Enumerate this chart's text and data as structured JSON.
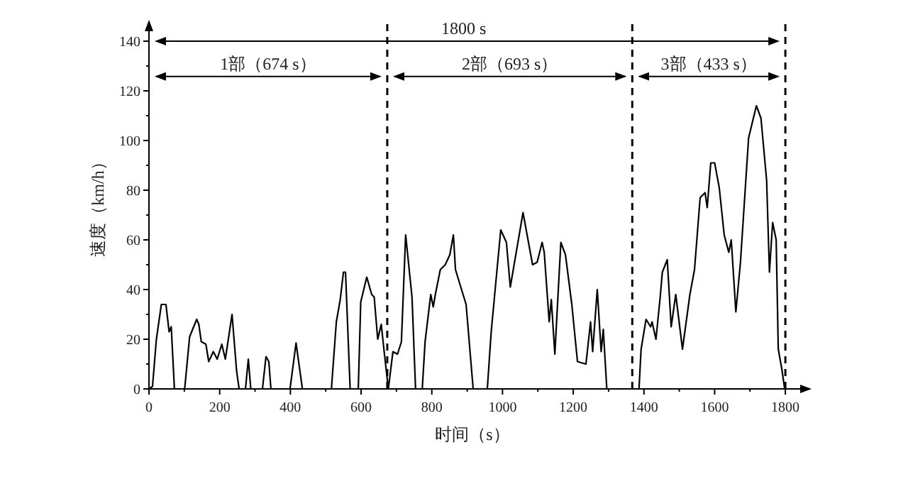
{
  "chart_data": {
    "type": "line",
    "xlabel": "时间（s）",
    "ylabel": "速度（km/h）",
    "xlim": [
      0,
      1870
    ],
    "ylim": [
      0,
      148
    ],
    "xticks": [
      0,
      {
        "value": 100,
        "label": null
      },
      200,
      {
        "value": 300,
        "label": null
      },
      400,
      {
        "value": 500,
        "label": null
      },
      600,
      {
        "value": 700,
        "label": null
      },
      800,
      {
        "value": 900,
        "label": null
      },
      1000,
      {
        "value": 1100,
        "label": null
      },
      1200,
      {
        "value": 1300,
        "label": null
      },
      1400,
      {
        "value": 1500,
        "label": null
      },
      1600,
      {
        "value": 1700,
        "label": null
      },
      1800
    ],
    "yticks": [
      0,
      {
        "value": 10,
        "label": null
      },
      20,
      {
        "value": 30,
        "label": null
      },
      40,
      {
        "value": 50,
        "label": null
      },
      60,
      {
        "value": 70,
        "label": null
      },
      80,
      {
        "value": 90,
        "label": null
      },
      100,
      {
        "value": 110,
        "label": null
      },
      120,
      {
        "value": 130,
        "label": null
      },
      140
    ],
    "grid": false,
    "marker": "none",
    "line_style": "solid",
    "annotations": [
      "1部（674 s）",
      "2部（693 s）",
      "3部（433 s）"
    ],
    "ref_lines": [
      {
        "axis": "y",
        "value": 140,
        "label": "1800 s",
        "line_style": "solid",
        "color": "#000000"
      },
      {
        "axis": "x",
        "value": 674,
        "line_style": "dashed",
        "color": "#000000"
      },
      {
        "axis": "x",
        "value": 1367,
        "line_style": "dashed",
        "color": "#000000"
      },
      {
        "axis": "x",
        "value": 1800,
        "line_style": "dashed",
        "color": "#000000"
      }
    ],
    "series": [
      {
        "color": "#000000",
        "x": [
          0,
          10,
          21,
          35,
          48,
          57,
          63,
          72,
          101,
          115,
          135,
          141,
          148,
          161,
          169,
          182,
          193,
          206,
          216,
          235,
          248,
          255,
          273,
          281,
          288,
          321,
          331,
          339,
          345,
          399,
          416,
          434,
          516,
          530,
          541,
          550,
          556,
          569,
          592,
          599,
          616,
          630,
          637,
          647,
          657,
          666,
          677,
          690,
          703,
          714,
          726,
          744,
          754,
          773,
          781,
          797,
          804,
          810,
          824,
          838,
          851,
          861,
          867,
          897,
          917,
          957,
          968,
          995,
          1011,
          1022,
          1058,
          1085,
          1098,
          1112,
          1118,
          1132,
          1138,
          1148,
          1165,
          1178,
          1196,
          1212,
          1236,
          1249,
          1255,
          1268,
          1279,
          1285,
          1295,
          1386,
          1392,
          1406,
          1419,
          1423,
          1434,
          1446,
          1452,
          1466,
          1477,
          1490,
          1509,
          1530,
          1543,
          1559,
          1573,
          1579,
          1589,
          1600,
          1613,
          1627,
          1640,
          1647,
          1660,
          1673,
          1696,
          1718,
          1731,
          1747,
          1755,
          1764,
          1774,
          1780,
          1790,
          1798
        ],
        "values": [
          0,
          1,
          20,
          34,
          34,
          23,
          25,
          0,
          0,
          21,
          28,
          26,
          19,
          18,
          11,
          15,
          12,
          18,
          12,
          30,
          7,
          0,
          0,
          12,
          0,
          0,
          13,
          11,
          0,
          0,
          18.5,
          0,
          0,
          27,
          36,
          47,
          47,
          0,
          0,
          35,
          45,
          38,
          37,
          20,
          26,
          14,
          0,
          15,
          14,
          19,
          62,
          37,
          0,
          0,
          19,
          38,
          33,
          38,
          48,
          50,
          54,
          62,
          48,
          34,
          0,
          0,
          23,
          64,
          59,
          41,
          71,
          50,
          51,
          59,
          55,
          27,
          36,
          14,
          59,
          54,
          34,
          11,
          10,
          27,
          15,
          40,
          15,
          24,
          0,
          0,
          16,
          28,
          25,
          27,
          20,
          37,
          47,
          52,
          25,
          38,
          16,
          38,
          48,
          77,
          79,
          73,
          91,
          91,
          81,
          62,
          55,
          60,
          31,
          51,
          101,
          114,
          109,
          84,
          47,
          67,
          60,
          16,
          8,
          0
        ]
      }
    ]
  }
}
